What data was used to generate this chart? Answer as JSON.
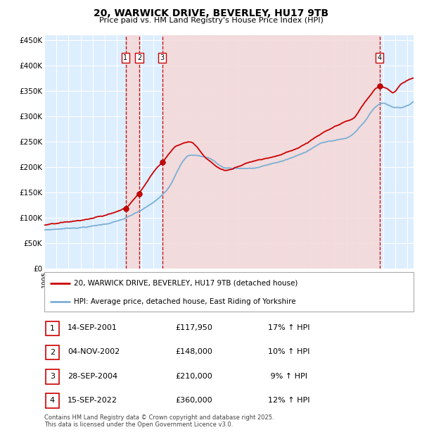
{
  "title": "20, WARWICK DRIVE, BEVERLEY, HU17 9TB",
  "subtitle": "Price paid vs. HM Land Registry's House Price Index (HPI)",
  "ylim": [
    0,
    460000
  ],
  "yticks": [
    0,
    50000,
    100000,
    150000,
    200000,
    250000,
    300000,
    350000,
    400000,
    450000
  ],
  "ytick_labels": [
    "£0",
    "£50K",
    "£100K",
    "£150K",
    "£200K",
    "£250K",
    "£300K",
    "£350K",
    "£400K",
    "£450K"
  ],
  "xmin": 1995,
  "xmax": 2025.5,
  "transaction_years": [
    2001.71,
    2002.84,
    2004.74,
    2022.71
  ],
  "transaction_prices": [
    117950,
    148000,
    210000,
    360000
  ],
  "legend_entries": [
    "20, WARWICK DRIVE, BEVERLEY, HU17 9TB (detached house)",
    "HPI: Average price, detached house, East Riding of Yorkshire"
  ],
  "table_rows": [
    [
      1,
      "14-SEP-2001",
      "£117,950",
      "17% ↑ HPI"
    ],
    [
      2,
      "04-NOV-2002",
      "£148,000",
      "10% ↑ HPI"
    ],
    [
      3,
      "28-SEP-2004",
      "£210,000",
      " 9% ↑ HPI"
    ],
    [
      4,
      "15-SEP-2022",
      "£360,000",
      "12% ↑ HPI"
    ]
  ],
  "footer": "Contains HM Land Registry data © Crown copyright and database right 2025.\nThis data is licensed under the Open Government Licence v3.0.",
  "red_line_color": "#cc0000",
  "blue_line_color": "#7bafd4",
  "plot_bg_color": "#ddeeff",
  "grid_color": "#ffffff",
  "vline_color": "#cc0000",
  "vband_color": "#f5d8d8"
}
